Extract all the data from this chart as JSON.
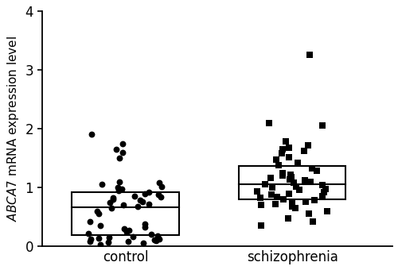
{
  "ylabel": "$\\it{ABCA7}$ mRNA expression level",
  "xlabel_control": "control",
  "xlabel_schizophrenia": "schizophrenia",
  "ylim": [
    0,
    4
  ],
  "yticks": [
    0,
    1,
    2,
    3,
    4
  ],
  "control_data": [
    0.03,
    0.05,
    0.07,
    0.08,
    0.09,
    0.1,
    0.11,
    0.12,
    0.13,
    0.14,
    0.15,
    0.17,
    0.18,
    0.2,
    0.22,
    0.25,
    0.27,
    0.3,
    0.32,
    0.35,
    0.38,
    0.42,
    0.55,
    0.6,
    0.65,
    0.68,
    0.7,
    0.72,
    0.74,
    0.76,
    0.78,
    0.8,
    0.82,
    0.84,
    0.86,
    0.88,
    0.9,
    0.92,
    0.95,
    0.97,
    1.0,
    1.02,
    1.05,
    1.08,
    1.1,
    1.5,
    1.6,
    1.65,
    1.75,
    1.9
  ],
  "schizophrenia_data": [
    0.35,
    0.42,
    0.48,
    0.55,
    0.6,
    0.65,
    0.68,
    0.7,
    0.72,
    0.74,
    0.76,
    0.78,
    0.8,
    0.82,
    0.84,
    0.86,
    0.88,
    0.9,
    0.92,
    0.94,
    0.96,
    0.98,
    1.0,
    1.02,
    1.04,
    1.06,
    1.08,
    1.1,
    1.12,
    1.14,
    1.16,
    1.18,
    1.2,
    1.22,
    1.25,
    1.28,
    1.32,
    1.38,
    1.42,
    1.48,
    1.52,
    1.58,
    1.62,
    1.65,
    1.68,
    1.72,
    1.78,
    2.05,
    2.1,
    3.25
  ],
  "marker_color": "#000000",
  "box_color": "#000000",
  "background_color": "#ffffff",
  "box_width": 0.32,
  "jitter_seed_control": 12,
  "jitter_seed_schizophrenia": 7,
  "label_fontsize": 11,
  "tick_fontsize": 12
}
